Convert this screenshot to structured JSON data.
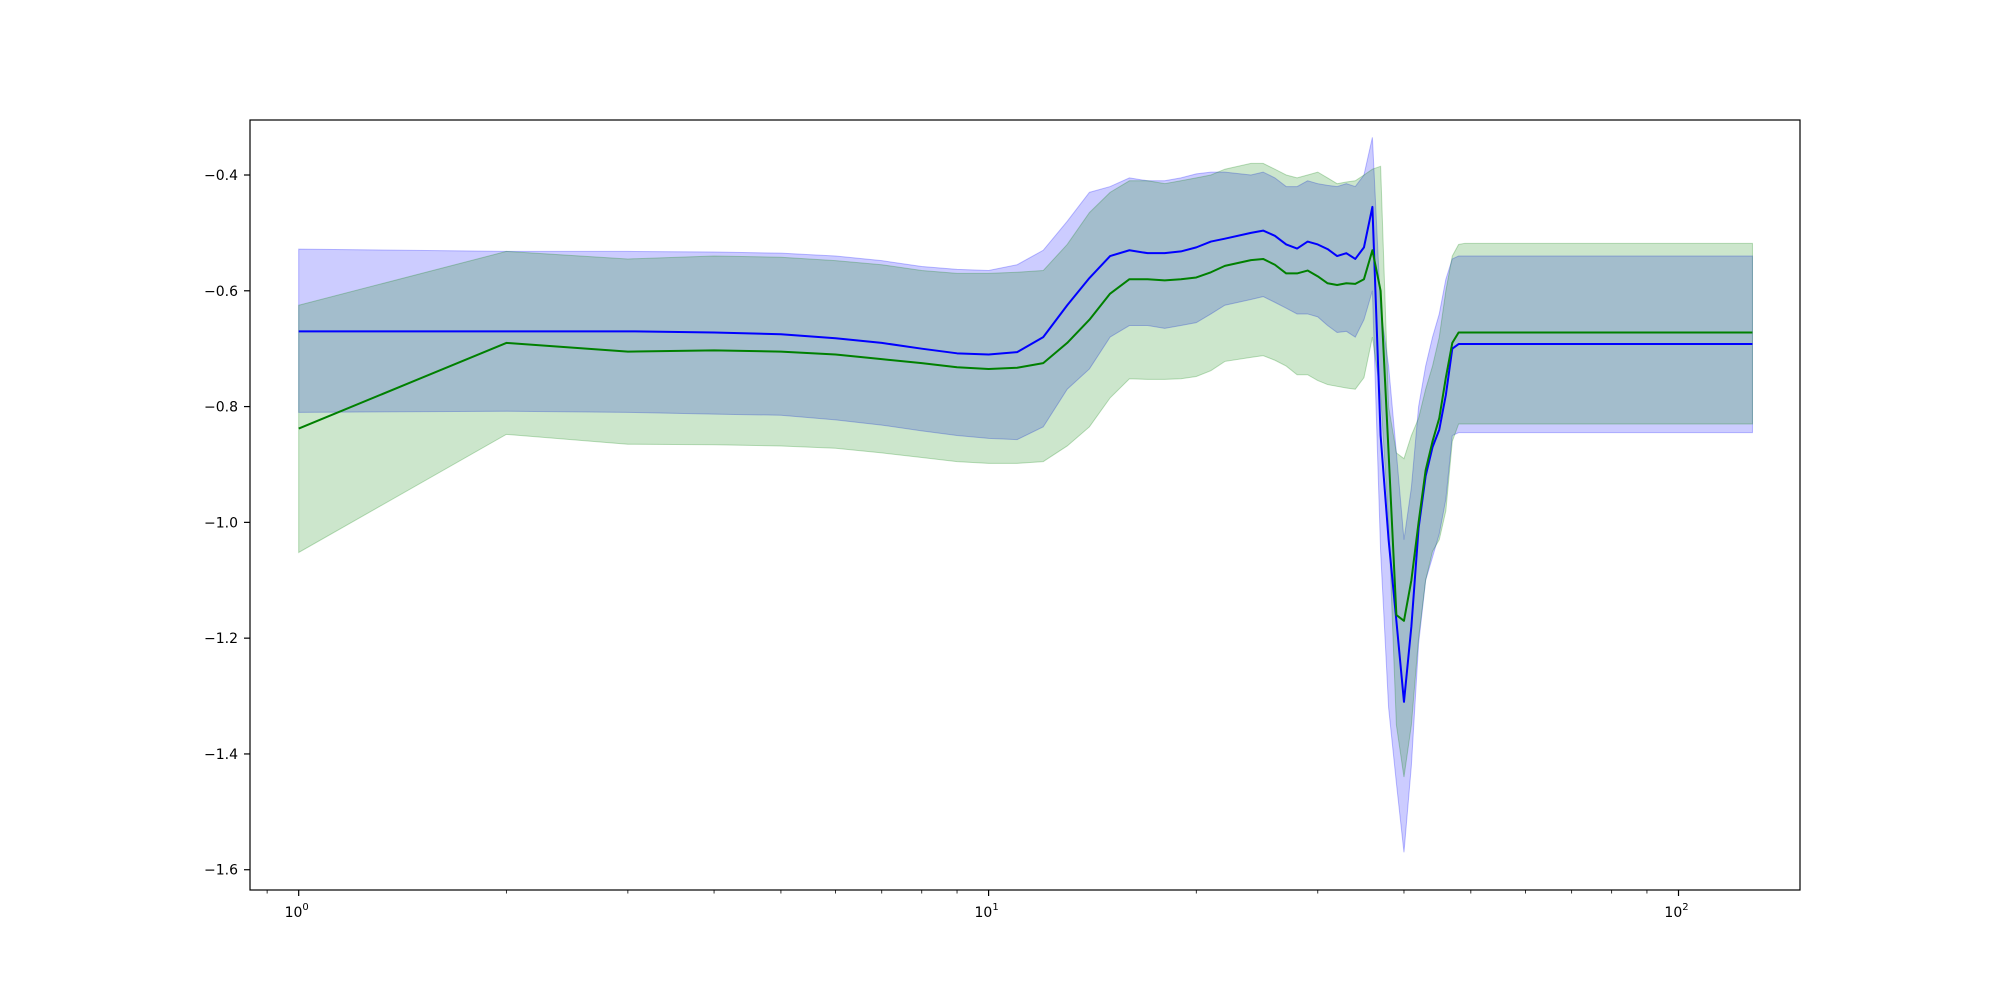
{
  "chart_data": {
    "type": "line",
    "title": "",
    "xlabel": "",
    "ylabel": "",
    "xscale": "log",
    "xlim": [
      0.85,
      150
    ],
    "ylim": [
      -1.635,
      -0.305
    ],
    "grid": false,
    "legend": "none",
    "x_ticks": [
      1,
      10,
      100
    ],
    "x_tick_labels": [
      {
        "base": "10",
        "exp": "0"
      },
      {
        "base": "10",
        "exp": "1"
      },
      {
        "base": "10",
        "exp": "2"
      }
    ],
    "y_ticks": [
      -1.6,
      -1.4,
      -1.2,
      -1.0,
      -0.8,
      -0.6,
      -0.4
    ],
    "y_tick_labels": [
      "−1.6",
      "−1.4",
      "−1.2",
      "−1.0",
      "−0.8",
      "−0.6",
      "−0.4"
    ],
    "series": [
      {
        "color": "#0000ff",
        "band_color": "#0000ff",
        "band_opacity": 0.2,
        "x": [
          1,
          2,
          3,
          4,
          5,
          6,
          7,
          8,
          9,
          10,
          11,
          12,
          13,
          14,
          15,
          16,
          17,
          18,
          19,
          20,
          21,
          22,
          24,
          25,
          26,
          27,
          28,
          29,
          30,
          31,
          32,
          33,
          34,
          35,
          36,
          37,
          38,
          39,
          40,
          41,
          42,
          43,
          44,
          45,
          46,
          47,
          48,
          49,
          50,
          128
        ],
        "y": [
          -0.67,
          -0.67,
          -0.67,
          -0.672,
          -0.675,
          -0.682,
          -0.69,
          -0.7,
          -0.708,
          -0.71,
          -0.706,
          -0.68,
          -0.625,
          -0.578,
          -0.54,
          -0.53,
          -0.535,
          -0.535,
          -0.532,
          -0.525,
          -0.515,
          -0.51,
          -0.5,
          -0.496,
          -0.505,
          -0.52,
          -0.527,
          -0.515,
          -0.52,
          -0.528,
          -0.54,
          -0.535,
          -0.545,
          -0.525,
          -0.455,
          -0.85,
          -1.03,
          -1.17,
          -1.31,
          -1.18,
          -1.01,
          -0.92,
          -0.87,
          -0.84,
          -0.78,
          -0.7,
          -0.692,
          -0.692,
          -0.692,
          -0.692
        ],
        "lower": [
          -0.81,
          -0.808,
          -0.81,
          -0.813,
          -0.815,
          -0.823,
          -0.832,
          -0.842,
          -0.85,
          -0.855,
          -0.857,
          -0.835,
          -0.77,
          -0.735,
          -0.68,
          -0.66,
          -0.66,
          -0.665,
          -0.66,
          -0.655,
          -0.64,
          -0.625,
          -0.615,
          -0.61,
          -0.62,
          -0.63,
          -0.64,
          -0.64,
          -0.645,
          -0.66,
          -0.672,
          -0.67,
          -0.68,
          -0.65,
          -0.6,
          -1.05,
          -1.32,
          -1.45,
          -1.57,
          -1.42,
          -1.21,
          -1.1,
          -1.06,
          -1.02,
          -0.96,
          -0.85,
          -0.845,
          -0.845,
          -0.845,
          -0.845
        ],
        "upper": [
          -0.528,
          -0.532,
          -0.532,
          -0.533,
          -0.535,
          -0.54,
          -0.548,
          -0.558,
          -0.563,
          -0.565,
          -0.555,
          -0.53,
          -0.48,
          -0.43,
          -0.42,
          -0.405,
          -0.41,
          -0.41,
          -0.405,
          -0.398,
          -0.395,
          -0.395,
          -0.4,
          -0.395,
          -0.405,
          -0.42,
          -0.42,
          -0.41,
          -0.415,
          -0.418,
          -0.42,
          -0.415,
          -0.42,
          -0.4,
          -0.335,
          -0.63,
          -0.73,
          -0.88,
          -1.03,
          -0.94,
          -0.8,
          -0.73,
          -0.68,
          -0.64,
          -0.58,
          -0.545,
          -0.54,
          -0.54,
          -0.54,
          -0.54
        ]
      },
      {
        "color": "#008000",
        "band_color": "#008000",
        "band_opacity": 0.2,
        "x": [
          1,
          2,
          3,
          4,
          5,
          6,
          7,
          8,
          9,
          10,
          11,
          12,
          13,
          14,
          15,
          16,
          17,
          18,
          19,
          20,
          21,
          22,
          24,
          25,
          26,
          27,
          28,
          29,
          30,
          31,
          32,
          33,
          34,
          35,
          36,
          37,
          38,
          39,
          40,
          41,
          42,
          43,
          44,
          45,
          46,
          47,
          48,
          49,
          50,
          128
        ],
        "y": [
          -0.838,
          -0.69,
          -0.705,
          -0.703,
          -0.705,
          -0.71,
          -0.718,
          -0.725,
          -0.732,
          -0.735,
          -0.733,
          -0.725,
          -0.69,
          -0.65,
          -0.605,
          -0.58,
          -0.58,
          -0.582,
          -0.58,
          -0.577,
          -0.568,
          -0.557,
          -0.547,
          -0.545,
          -0.555,
          -0.57,
          -0.57,
          -0.565,
          -0.575,
          -0.587,
          -0.59,
          -0.587,
          -0.588,
          -0.58,
          -0.53,
          -0.6,
          -0.88,
          -1.16,
          -1.17,
          -1.1,
          -1.0,
          -0.91,
          -0.86,
          -0.82,
          -0.75,
          -0.69,
          -0.672,
          -0.672,
          -0.672,
          -0.672
        ],
        "lower": [
          -1.052,
          -0.848,
          -0.865,
          -0.866,
          -0.868,
          -0.872,
          -0.88,
          -0.888,
          -0.895,
          -0.898,
          -0.898,
          -0.895,
          -0.868,
          -0.835,
          -0.785,
          -0.752,
          -0.753,
          -0.753,
          -0.752,
          -0.748,
          -0.738,
          -0.722,
          -0.715,
          -0.712,
          -0.72,
          -0.73,
          -0.745,
          -0.745,
          -0.755,
          -0.762,
          -0.765,
          -0.768,
          -0.77,
          -0.75,
          -0.68,
          -0.78,
          -1.0,
          -1.35,
          -1.44,
          -1.35,
          -1.2,
          -1.1,
          -1.05,
          -1.03,
          -0.98,
          -0.86,
          -0.83,
          -0.83,
          -0.83,
          -0.83
        ],
        "upper": [
          -0.625,
          -0.532,
          -0.545,
          -0.54,
          -0.542,
          -0.548,
          -0.555,
          -0.565,
          -0.57,
          -0.57,
          -0.568,
          -0.565,
          -0.52,
          -0.465,
          -0.43,
          -0.41,
          -0.41,
          -0.415,
          -0.41,
          -0.405,
          -0.4,
          -0.39,
          -0.38,
          -0.38,
          -0.39,
          -0.4,
          -0.405,
          -0.4,
          -0.395,
          -0.405,
          -0.415,
          -0.412,
          -0.41,
          -0.4,
          -0.39,
          -0.385,
          -0.8,
          -0.88,
          -0.89,
          -0.85,
          -0.82,
          -0.77,
          -0.73,
          -0.68,
          -0.6,
          -0.54,
          -0.52,
          -0.518,
          -0.518,
          -0.518
        ]
      }
    ]
  }
}
